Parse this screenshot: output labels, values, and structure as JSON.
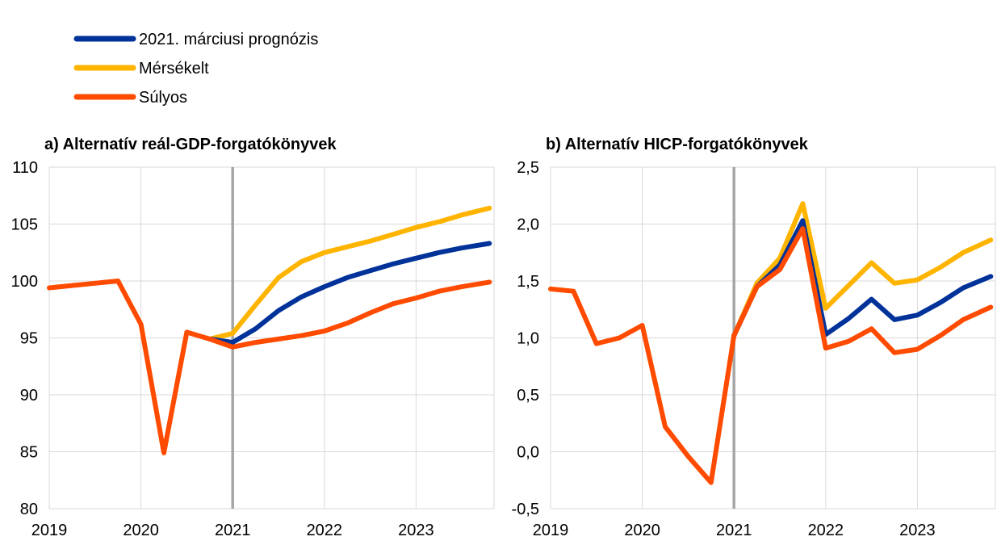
{
  "colors": {
    "march": "#003299",
    "mild": "#ffb400",
    "severe": "#ff4b00",
    "vline": "#a6a6a6",
    "grid": "#d9d9d9"
  },
  "legend": [
    {
      "key": "march",
      "label": "2021. márciusi prognózis"
    },
    {
      "key": "mild",
      "label": "Mérsékelt"
    },
    {
      "key": "severe",
      "label": "Súlyos"
    }
  ],
  "chart_data": [
    {
      "type": "line",
      "title": "a) Alternatív reál-GDP-forgatókönyvek",
      "xlabel": "",
      "ylabel": "",
      "xlim": [
        2019,
        2023.85
      ],
      "ylim": [
        80,
        110
      ],
      "yticks": [
        80,
        85,
        90,
        95,
        100,
        105,
        110
      ],
      "ytick_labels": [
        "80",
        "85",
        "90",
        "95",
        "100",
        "105",
        "110"
      ],
      "xticks": [
        2019,
        2020,
        2021,
        2022,
        2023
      ],
      "xtick_labels": [
        "2019",
        "2020",
        "2021",
        "2022",
        "2023"
      ],
      "vline": 2021,
      "grid": true,
      "series": [
        {
          "key": "mild",
          "name": "Mérsékelt",
          "x": [
            2020.75,
            2021,
            2021.25,
            2021.5,
            2021.75,
            2022,
            2022.25,
            2022.5,
            2022.75,
            2023,
            2023.25,
            2023.5,
            2023.8
          ],
          "y": [
            94.9,
            95.4,
            97.9,
            100.3,
            101.7,
            102.5,
            103.0,
            103.5,
            104.1,
            104.7,
            105.2,
            105.8,
            106.4
          ]
        },
        {
          "key": "march",
          "name": "2021. márciusi prognózis",
          "x": [
            2020.75,
            2021,
            2021.25,
            2021.5,
            2021.75,
            2022,
            2022.25,
            2022.5,
            2022.75,
            2023,
            2023.25,
            2023.5,
            2023.8
          ],
          "y": [
            94.9,
            94.6,
            95.8,
            97.4,
            98.6,
            99.5,
            100.3,
            100.9,
            101.5,
            102.0,
            102.5,
            102.9,
            103.3
          ]
        },
        {
          "key": "severe",
          "name": "Súlyos",
          "x": [
            2019,
            2019.25,
            2019.5,
            2019.75,
            2020,
            2020.25,
            2020.5,
            2020.75,
            2021,
            2021.25,
            2021.5,
            2021.75,
            2022,
            2022.25,
            2022.5,
            2022.75,
            2023,
            2023.25,
            2023.5,
            2023.8
          ],
          "y": [
            99.4,
            99.6,
            99.8,
            100.0,
            96.2,
            84.9,
            95.5,
            94.9,
            94.2,
            94.6,
            94.9,
            95.2,
            95.6,
            96.3,
            97.2,
            98.0,
            98.5,
            99.1,
            99.5,
            99.9
          ]
        }
      ]
    },
    {
      "type": "line",
      "title": "b) Alternatív HICP-forgatókönyvek",
      "xlabel": "",
      "ylabel": "",
      "xlim": [
        2019,
        2023.85
      ],
      "ylim": [
        -0.5,
        2.5
      ],
      "yticks": [
        -0.5,
        0.0,
        0.5,
        1.0,
        1.5,
        2.0,
        2.5
      ],
      "ytick_labels": [
        "-0,5",
        "0,0",
        "0,5",
        "1,0",
        "1,5",
        "2,0",
        "2,5"
      ],
      "xticks": [
        2019,
        2020,
        2021,
        2022,
        2023
      ],
      "xtick_labels": [
        "2019",
        "2020",
        "2021",
        "2022",
        "2023"
      ],
      "vline": 2021,
      "grid": true,
      "series": [
        {
          "key": "mild",
          "name": "Mérsékelt",
          "x": [
            2021,
            2021.25,
            2021.5,
            2021.75,
            2022,
            2022.25,
            2022.5,
            2022.75,
            2023,
            2023.25,
            2023.5,
            2023.8
          ],
          "y": [
            1.02,
            1.48,
            1.7,
            2.18,
            1.26,
            1.46,
            1.66,
            1.48,
            1.51,
            1.62,
            1.75,
            1.86
          ]
        },
        {
          "key": "march",
          "name": "2021. márciusi prognózis",
          "x": [
            2021,
            2021.25,
            2021.5,
            2021.75,
            2022,
            2022.25,
            2022.5,
            2022.75,
            2023,
            2023.25,
            2023.5,
            2023.8
          ],
          "y": [
            1.02,
            1.45,
            1.64,
            2.03,
            1.03,
            1.17,
            1.34,
            1.16,
            1.2,
            1.31,
            1.44,
            1.54
          ]
        },
        {
          "key": "severe",
          "name": "Súlyos",
          "x": [
            2019,
            2019.25,
            2019.5,
            2019.75,
            2020,
            2020.25,
            2020.5,
            2020.75,
            2021,
            2021.25,
            2021.5,
            2021.75,
            2022,
            2022.25,
            2022.5,
            2022.75,
            2023,
            2023.25,
            2023.5,
            2023.8
          ],
          "y": [
            1.43,
            1.41,
            0.95,
            1.0,
            1.11,
            0.22,
            -0.04,
            -0.27,
            1.02,
            1.45,
            1.6,
            1.96,
            0.91,
            0.97,
            1.08,
            0.87,
            0.9,
            1.02,
            1.16,
            1.27
          ]
        }
      ]
    }
  ]
}
